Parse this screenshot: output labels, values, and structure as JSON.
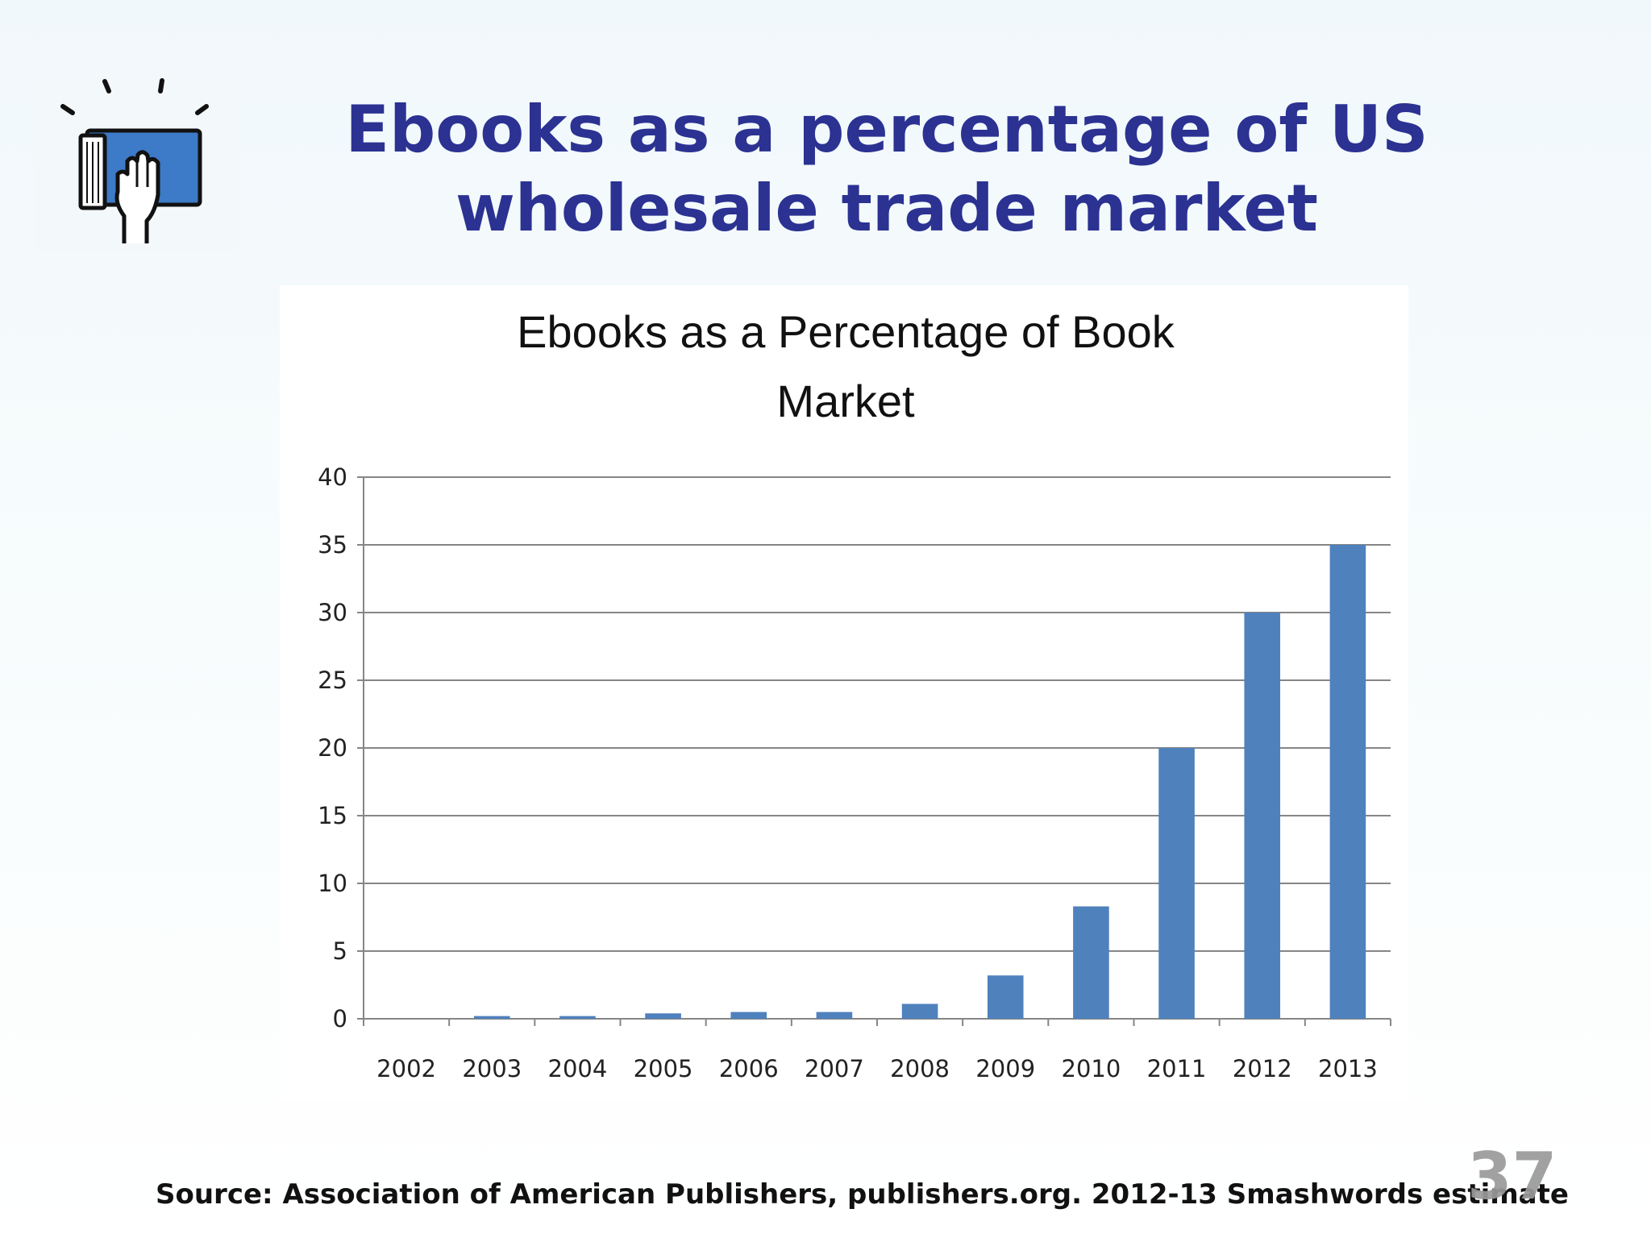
{
  "slide": {
    "title_line1": "Ebooks as a percentage of US",
    "title_line2": "wholesale trade market",
    "source": "Source: Association of American Publishers, publishers.org.  2012-13 Smashwords estimate",
    "page_number": "37",
    "logo_icon": "book-hand-icon",
    "title_color": "#2b3292"
  },
  "chart_data": {
    "type": "bar",
    "title_line1": "Ebooks as a Percentage of Book",
    "title_line2": "Market",
    "categories": [
      "2002",
      "2003",
      "2004",
      "2005",
      "2006",
      "2007",
      "2008",
      "2009",
      "2010",
      "2011",
      "2012",
      "2013"
    ],
    "values": [
      0,
      0.2,
      0.2,
      0.4,
      0.5,
      0.5,
      1.1,
      3.2,
      8.3,
      20,
      30,
      35
    ],
    "y_ticks": [
      "0",
      "5",
      "10",
      "15",
      "20",
      "25",
      "30",
      "35",
      "40"
    ],
    "ylim": [
      0,
      40
    ],
    "xlabel": "",
    "ylabel": "",
    "grid": true,
    "legend": "none",
    "bar_color": "#4f81bd"
  }
}
